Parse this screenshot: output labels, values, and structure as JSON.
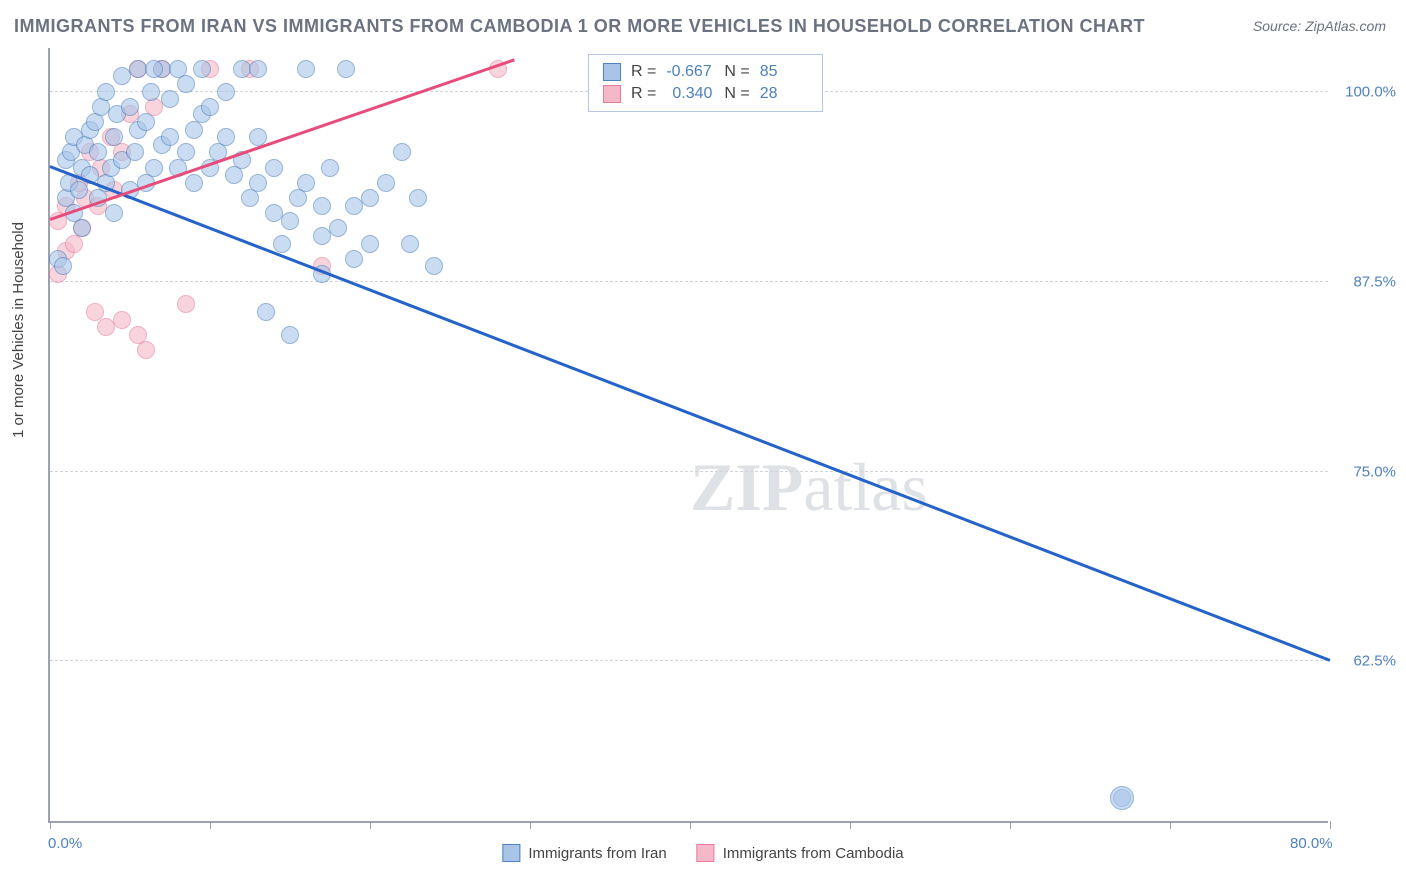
{
  "title": "IMMIGRANTS FROM IRAN VS IMMIGRANTS FROM CAMBODIA 1 OR MORE VEHICLES IN HOUSEHOLD CORRELATION CHART",
  "source": "Source: ZipAtlas.com",
  "watermark_bold": "ZIP",
  "watermark_light": "atlas",
  "y_axis_title": "1 or more Vehicles in Household",
  "x_min_label": "0.0%",
  "x_max_label": "80.0%",
  "legend": {
    "series1": "Immigrants from Iran",
    "series2": "Immigrants from Cambodia"
  },
  "stats": {
    "r_label": "R =",
    "n_label": "N =",
    "s1_r": "-0.667",
    "s1_n": "85",
    "s2_r": "0.340",
    "s2_n": "28"
  },
  "colors": {
    "series1_fill": "#a8c5e8",
    "series1_stroke": "#4f81bd",
    "series2_fill": "#f5b8c8",
    "series2_stroke": "#e87b9c",
    "trend1": "#2563c9",
    "trend2": "#e84c7a",
    "grid": "#d1d5db",
    "axis": "#9ca3af",
    "tick_label": "#4f81bd",
    "title_color": "#6b7280"
  },
  "chart": {
    "xlim": [
      0,
      80
    ],
    "ylim": [
      52,
      103
    ],
    "y_ticks": [
      62.5,
      75.0,
      87.5,
      100.0
    ],
    "y_tick_labels": [
      "62.5%",
      "75.0%",
      "87.5%",
      "100.0%"
    ],
    "x_ticks": [
      0,
      10,
      20,
      30,
      40,
      50,
      60,
      70,
      80
    ],
    "marker_radius": 9
  },
  "trend_lines": {
    "s1": {
      "x1": 0,
      "y1": 95.0,
      "x2": 80,
      "y2": 62.5
    },
    "s2": {
      "x1": 0,
      "y1": 91.5,
      "x2": 29,
      "y2": 102.0
    }
  },
  "series1_points": [
    [
      0.5,
      89.0
    ],
    [
      0.8,
      88.5
    ],
    [
      1.0,
      93.0
    ],
    [
      1.2,
      94.0
    ],
    [
      1.0,
      95.5
    ],
    [
      1.3,
      96.0
    ],
    [
      1.5,
      92.0
    ],
    [
      1.5,
      97.0
    ],
    [
      1.8,
      93.5
    ],
    [
      2.0,
      91.0
    ],
    [
      2.0,
      95.0
    ],
    [
      2.2,
      96.5
    ],
    [
      2.5,
      94.5
    ],
    [
      2.5,
      97.5
    ],
    [
      2.8,
      98.0
    ],
    [
      3.0,
      93.0
    ],
    [
      3.0,
      96.0
    ],
    [
      3.2,
      99.0
    ],
    [
      3.5,
      94.0
    ],
    [
      3.5,
      100.0
    ],
    [
      3.8,
      95.0
    ],
    [
      4.0,
      92.0
    ],
    [
      4.0,
      97.0
    ],
    [
      4.2,
      98.5
    ],
    [
      4.5,
      95.5
    ],
    [
      4.5,
      101.0
    ],
    [
      5.0,
      93.5
    ],
    [
      5.0,
      99.0
    ],
    [
      5.3,
      96.0
    ],
    [
      5.5,
      97.5
    ],
    [
      5.5,
      101.5
    ],
    [
      6.0,
      94.0
    ],
    [
      6.0,
      98.0
    ],
    [
      6.3,
      100.0
    ],
    [
      6.5,
      95.0
    ],
    [
      7.0,
      96.5
    ],
    [
      7.0,
      101.5
    ],
    [
      7.5,
      97.0
    ],
    [
      7.5,
      99.5
    ],
    [
      8.0,
      95.0
    ],
    [
      8.0,
      101.5
    ],
    [
      8.5,
      96.0
    ],
    [
      8.5,
      100.5
    ],
    [
      9.0,
      94.0
    ],
    [
      9.0,
      97.5
    ],
    [
      9.5,
      98.5
    ],
    [
      9.5,
      101.5
    ],
    [
      10.0,
      95.0
    ],
    [
      10.0,
      99.0
    ],
    [
      10.5,
      96.0
    ],
    [
      11.0,
      97.0
    ],
    [
      11.0,
      100.0
    ],
    [
      11.5,
      94.5
    ],
    [
      12.0,
      95.5
    ],
    [
      12.0,
      101.5
    ],
    [
      12.5,
      93.0
    ],
    [
      13.0,
      94.0
    ],
    [
      13.0,
      97.0
    ],
    [
      13.5,
      85.5
    ],
    [
      14.0,
      92.0
    ],
    [
      14.0,
      95.0
    ],
    [
      14.5,
      90.0
    ],
    [
      15.0,
      91.5
    ],
    [
      15.0,
      84.0
    ],
    [
      15.5,
      93.0
    ],
    [
      16.0,
      94.0
    ],
    [
      16.0,
      101.5
    ],
    [
      17.0,
      90.5
    ],
    [
      17.0,
      92.5
    ],
    [
      17.5,
      95.0
    ],
    [
      18.0,
      91.0
    ],
    [
      18.5,
      101.5
    ],
    [
      19.0,
      92.5
    ],
    [
      19.0,
      89.0
    ],
    [
      20.0,
      90.0
    ],
    [
      20.0,
      93.0
    ],
    [
      21.0,
      94.0
    ],
    [
      22.0,
      96.0
    ],
    [
      22.5,
      90.0
    ],
    [
      23.0,
      93.0
    ],
    [
      24.0,
      88.5
    ],
    [
      17.0,
      88.0
    ],
    [
      13.0,
      101.5
    ],
    [
      6.5,
      101.5
    ],
    [
      67.0,
      53.5
    ]
  ],
  "series2_points": [
    [
      0.5,
      91.5
    ],
    [
      0.5,
      88.0
    ],
    [
      1.0,
      89.5
    ],
    [
      1.0,
      92.5
    ],
    [
      1.5,
      90.0
    ],
    [
      1.8,
      94.0
    ],
    [
      2.0,
      91.0
    ],
    [
      2.2,
      93.0
    ],
    [
      2.5,
      96.0
    ],
    [
      2.8,
      85.5
    ],
    [
      3.0,
      92.5
    ],
    [
      3.2,
      95.0
    ],
    [
      3.5,
      84.5
    ],
    [
      3.8,
      97.0
    ],
    [
      4.0,
      93.5
    ],
    [
      4.5,
      85.0
    ],
    [
      4.5,
      96.0
    ],
    [
      5.0,
      98.5
    ],
    [
      5.5,
      101.5
    ],
    [
      5.5,
      84.0
    ],
    [
      6.0,
      83.0
    ],
    [
      6.5,
      99.0
    ],
    [
      7.0,
      101.5
    ],
    [
      8.5,
      86.0
    ],
    [
      10.0,
      101.5
    ],
    [
      12.5,
      101.5
    ],
    [
      17.0,
      88.5
    ],
    [
      28.0,
      101.5
    ]
  ]
}
